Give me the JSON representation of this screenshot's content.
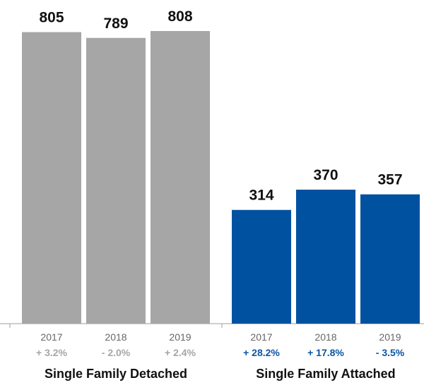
{
  "chart_data": {
    "type": "bar",
    "ylim": [
      0,
      900
    ],
    "grid": false,
    "groups": [
      {
        "name": "Single Family Detached",
        "color": "#a6a6a6",
        "change_color": "#a6a6a6",
        "categories": [
          "2017",
          "2018",
          "2019"
        ],
        "values": [
          805,
          789,
          808
        ],
        "value_labels": [
          "805",
          "789",
          "808"
        ],
        "changes": [
          "+ 3.2%",
          "- 2.0%",
          "+ 2.4%"
        ]
      },
      {
        "name": "Single Family Attached",
        "color": "#0051a0",
        "change_color": "#0b55a3",
        "categories": [
          "2017",
          "2018",
          "2019"
        ],
        "values": [
          314,
          370,
          357
        ],
        "value_labels": [
          "314",
          "370",
          "357"
        ],
        "changes": [
          "+ 28.2%",
          "+ 17.8%",
          "- 3.5%"
        ]
      }
    ]
  }
}
